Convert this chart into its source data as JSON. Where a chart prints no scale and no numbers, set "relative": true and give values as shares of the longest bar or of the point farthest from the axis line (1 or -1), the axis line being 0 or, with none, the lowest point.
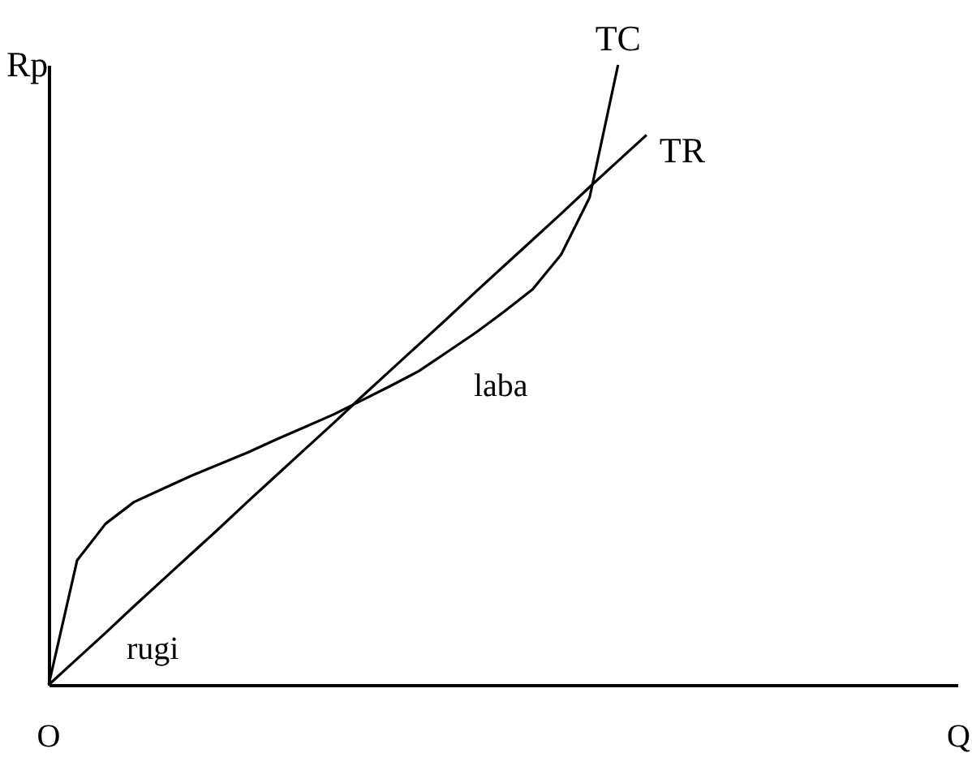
{
  "chart_data": {
    "type": "line",
    "relative": true,
    "ylabel": "Rp",
    "tick_labels": false,
    "grid": false,
    "legend": false,
    "categories": [
      null,
      null,
      null,
      null,
      null,
      null,
      null,
      null,
      null,
      null,
      null,
      null,
      null,
      null,
      null,
      null,
      null,
      null,
      null,
      null,
      null,
      null
    ],
    "series": [
      {
        "name": "TC",
        "color": "#000000",
        "values": [
          0,
          0.201,
          0.26,
          0.295,
          0.316,
          0.337,
          0.356,
          0.375,
          0.396,
          0.416,
          0.436,
          0.459,
          0.482,
          0.506,
          0.537,
          0.568,
          0.602,
          0.638,
          0.694,
          0.786,
          1.0,
          null
        ]
      },
      {
        "name": "TR",
        "color": "#000000",
        "values": [
          0,
          0.042,
          0.084,
          0.127,
          0.169,
          0.211,
          0.253,
          0.296,
          0.338,
          0.38,
          0.422,
          0.465,
          0.507,
          0.549,
          0.591,
          0.634,
          0.676,
          0.718,
          0.76,
          0.803,
          0.845,
          0.887
        ]
      }
    ],
    "annotations": [
      "laba",
      "rugi",
      "O",
      "Q"
    ]
  }
}
